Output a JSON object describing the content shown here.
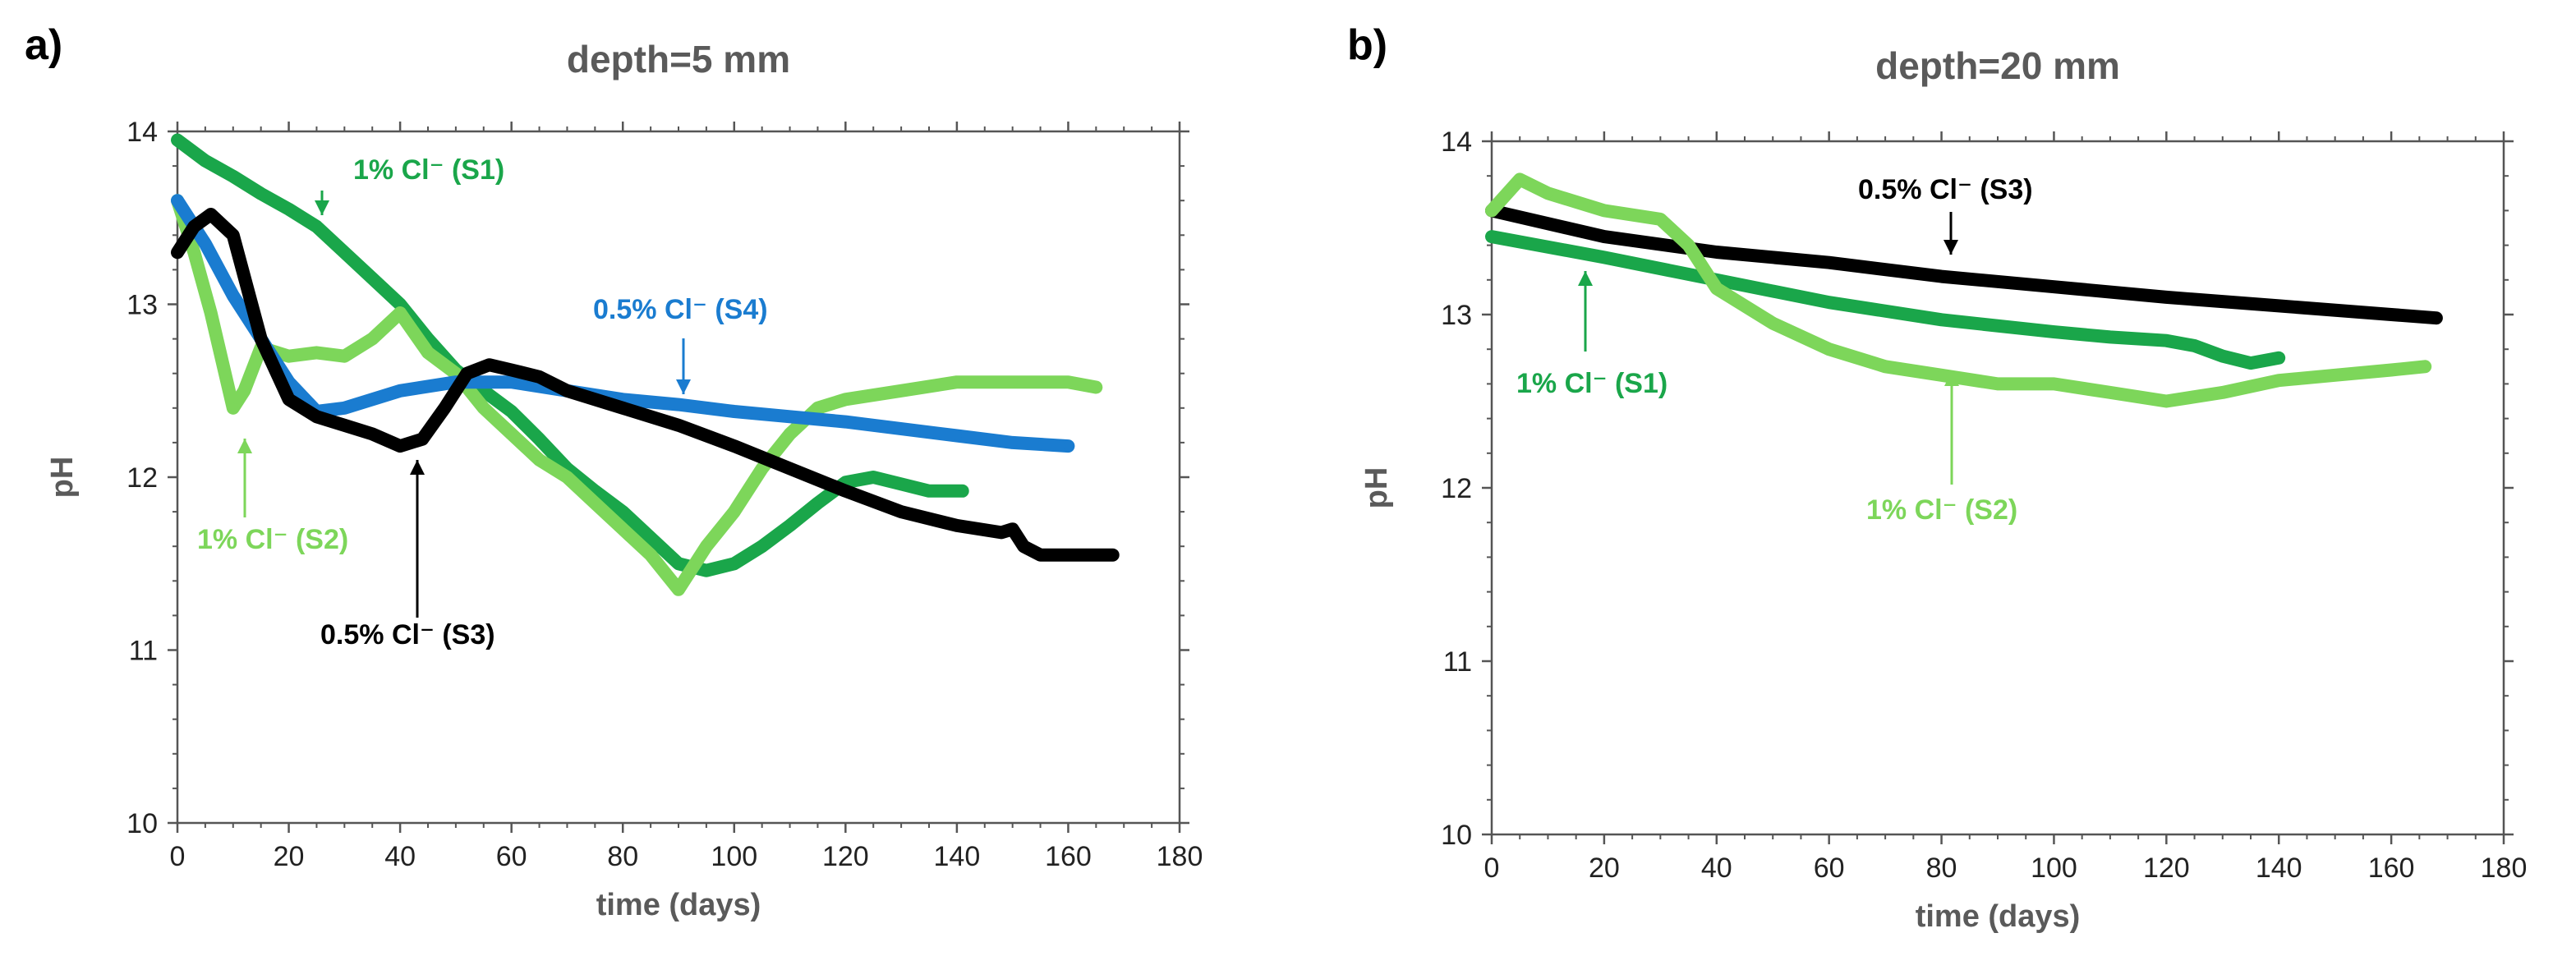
{
  "chart_data": [
    {
      "type": "line",
      "panel": "a)",
      "title": "depth=5 mm",
      "xlabel": "time (days)",
      "ylabel": "pH",
      "xlim": [
        0,
        180
      ],
      "ylim": [
        10,
        14
      ],
      "xticks": [
        0,
        20,
        40,
        60,
        80,
        100,
        120,
        140,
        160,
        180
      ],
      "yticks": [
        10,
        11,
        12,
        13,
        14
      ],
      "grid": false,
      "series": [
        {
          "name": "1% Cl⁻ (S1)",
          "color": "#1aa64a",
          "x": [
            0,
            5,
            10,
            15,
            20,
            25,
            30,
            35,
            40,
            45,
            50,
            55,
            60,
            65,
            70,
            75,
            80,
            85,
            90,
            95,
            100,
            105,
            110,
            115,
            120,
            125,
            130,
            135,
            141
          ],
          "y": [
            13.95,
            13.83,
            13.74,
            13.64,
            13.55,
            13.45,
            13.3,
            13.15,
            13.0,
            12.8,
            12.62,
            12.5,
            12.38,
            12.22,
            12.05,
            11.92,
            11.8,
            11.65,
            11.5,
            11.46,
            11.5,
            11.6,
            11.72,
            11.85,
            11.97,
            12.0,
            11.96,
            11.92,
            11.92
          ]
        },
        {
          "name": "1% Cl⁻ (S2)",
          "color": "#7dd65a",
          "x": [
            0,
            3,
            6,
            10,
            12,
            15,
            20,
            25,
            30,
            35,
            40,
            45,
            50,
            55,
            60,
            65,
            70,
            75,
            80,
            85,
            90,
            95,
            100,
            105,
            110,
            115,
            120,
            130,
            140,
            150,
            160,
            165
          ],
          "y": [
            13.6,
            13.3,
            12.95,
            12.4,
            12.5,
            12.75,
            12.7,
            12.72,
            12.7,
            12.8,
            12.95,
            12.72,
            12.6,
            12.4,
            12.25,
            12.1,
            12.0,
            11.85,
            11.7,
            11.55,
            11.35,
            11.6,
            11.8,
            12.05,
            12.25,
            12.4,
            12.45,
            12.5,
            12.55,
            12.55,
            12.55,
            12.52
          ]
        },
        {
          "name": "0.5% Cl⁻ (S4)",
          "color": "#1a7cd0",
          "x": [
            0,
            5,
            10,
            15,
            20,
            25,
            30,
            40,
            50,
            60,
            70,
            80,
            90,
            100,
            110,
            120,
            130,
            140,
            150,
            160
          ],
          "y": [
            13.6,
            13.35,
            13.05,
            12.8,
            12.55,
            12.38,
            12.4,
            12.5,
            12.55,
            12.55,
            12.5,
            12.45,
            12.42,
            12.38,
            12.35,
            12.32,
            12.28,
            12.24,
            12.2,
            12.18
          ]
        },
        {
          "name": "0.5% Cl⁻ (S3)",
          "color": "#000000",
          "x": [
            0,
            3,
            6,
            10,
            15,
            20,
            25,
            30,
            35,
            40,
            44,
            48,
            52,
            56,
            60,
            65,
            70,
            80,
            90,
            100,
            110,
            120,
            130,
            140,
            148,
            150,
            152,
            155,
            160,
            168
          ],
          "y": [
            13.3,
            13.45,
            13.52,
            13.4,
            12.8,
            12.45,
            12.35,
            12.3,
            12.25,
            12.18,
            12.22,
            12.4,
            12.6,
            12.65,
            12.62,
            12.58,
            12.5,
            12.4,
            12.3,
            12.18,
            12.05,
            11.92,
            11.8,
            11.72,
            11.68,
            11.7,
            11.6,
            11.55,
            11.55,
            11.55
          ]
        }
      ],
      "annotations": [
        {
          "text": "1% Cl⁻ (S1)",
          "color": "#1aa64a",
          "x": 25,
          "y": 13.45
        },
        {
          "text": "0.5% Cl⁻ (S4)",
          "color": "#1a7cd0",
          "x": 92,
          "y": 12.45
        },
        {
          "text": "1% Cl⁻ (S2)",
          "color": "#7dd65a",
          "x": 12,
          "y": 12.3
        },
        {
          "text": "0.5% Cl⁻ (S3)",
          "color": "#000000",
          "x": 44,
          "y": 12.12
        }
      ]
    },
    {
      "type": "line",
      "panel": "b)",
      "title": "depth=20 mm",
      "xlabel": "time (days)",
      "ylabel": "pH",
      "xlim": [
        0,
        180
      ],
      "ylim": [
        10,
        14
      ],
      "xticks": [
        0,
        20,
        40,
        60,
        80,
        100,
        120,
        140,
        160,
        180
      ],
      "yticks": [
        10,
        11,
        12,
        13,
        14
      ],
      "grid": false,
      "series": [
        {
          "name": "0.5% Cl⁻ (S3)",
          "color": "#000000",
          "x": [
            0,
            20,
            40,
            60,
            80,
            100,
            120,
            140,
            160,
            168
          ],
          "y": [
            13.6,
            13.45,
            13.36,
            13.3,
            13.22,
            13.16,
            13.1,
            13.05,
            13.0,
            12.98
          ]
        },
        {
          "name": "1% Cl⁻ (S1)",
          "color": "#1aa64a",
          "x": [
            0,
            20,
            40,
            60,
            80,
            100,
            110,
            120,
            125,
            130,
            135,
            140
          ],
          "y": [
            13.45,
            13.33,
            13.2,
            13.07,
            12.97,
            12.9,
            12.87,
            12.85,
            12.82,
            12.76,
            12.72,
            12.75
          ]
        },
        {
          "name": "1% Cl⁻ (S2)",
          "color": "#7dd65a",
          "x": [
            0,
            5,
            10,
            20,
            30,
            35,
            40,
            50,
            60,
            70,
            80,
            90,
            100,
            110,
            120,
            130,
            140,
            150,
            160,
            166
          ],
          "y": [
            13.6,
            13.78,
            13.7,
            13.6,
            13.55,
            13.4,
            13.15,
            12.95,
            12.8,
            12.7,
            12.65,
            12.6,
            12.6,
            12.55,
            12.5,
            12.55,
            12.62,
            12.65,
            12.68,
            12.7
          ]
        }
      ],
      "annotations": [
        {
          "text": "0.5% Cl⁻ (S3)",
          "color": "#000000",
          "x": 82,
          "y": 13.3
        },
        {
          "text": "1% Cl⁻ (S1)",
          "color": "#1aa64a",
          "x": 15,
          "y": 13.25
        },
        {
          "text": "1% Cl⁻ (S2)",
          "color": "#7dd65a",
          "x": 80,
          "y": 12.55
        }
      ]
    }
  ]
}
